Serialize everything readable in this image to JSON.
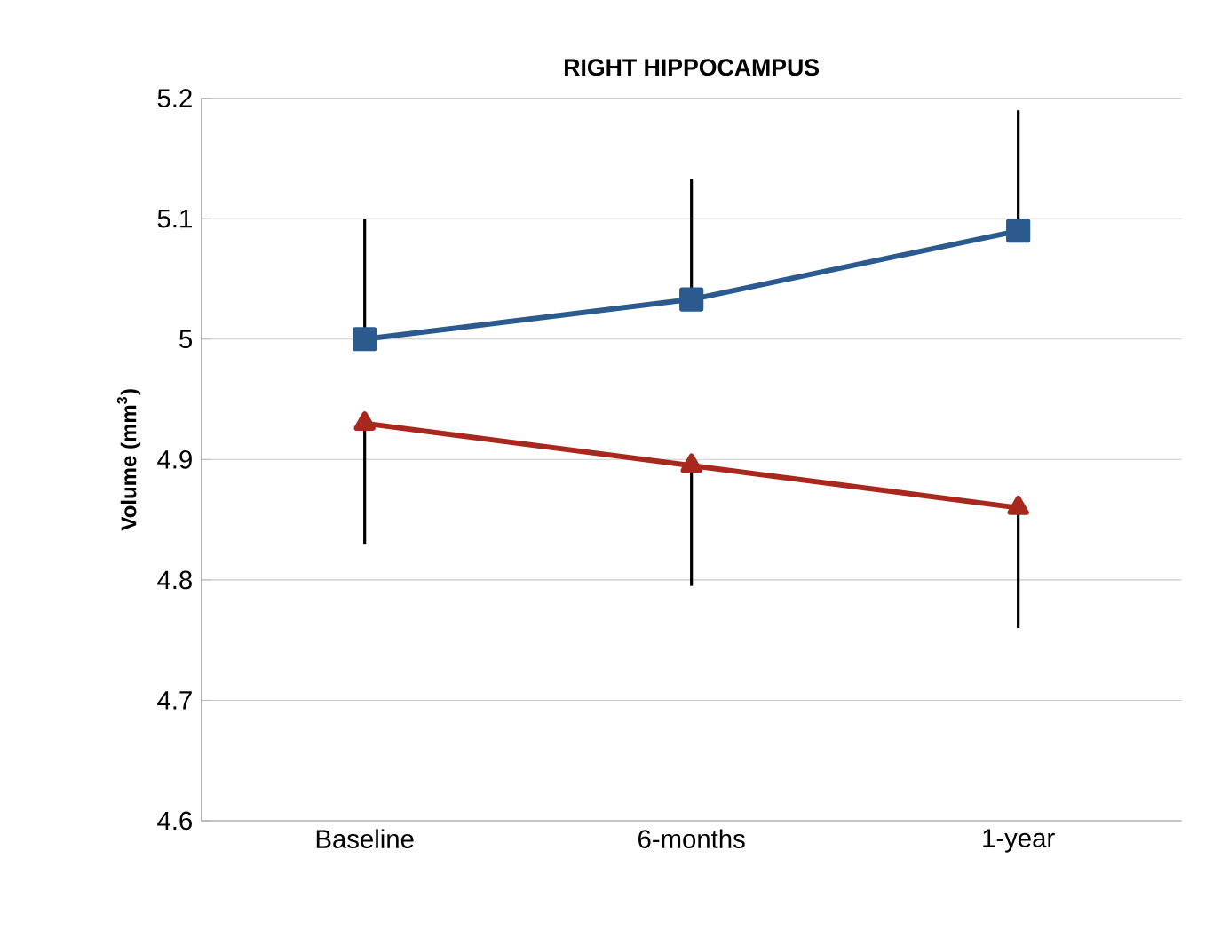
{
  "chart_data": {
    "type": "line",
    "title": "RIGHT HIPPOCAMPUS",
    "ylabel": "Volume (mm$^{3}$)",
    "categories": [
      "Baseline",
      "6-months",
      "1-year"
    ],
    "series": [
      {
        "color": "#2b5a8e",
        "marker": "square",
        "values": [
          5.0,
          5.033,
          5.09
        ],
        "errors": [
          [
            5.0,
            5.1
          ],
          [
            5.033,
            5.133
          ],
          [
            5.09,
            5.19
          ]
        ]
      },
      {
        "color": "#a8281e",
        "marker": "triangle",
        "values": [
          4.93,
          4.895,
          4.86
        ],
        "errors": [
          [
            4.83,
            4.93
          ],
          [
            4.795,
            4.895
          ],
          [
            4.76,
            4.86
          ]
        ]
      }
    ],
    "ylim": [
      4.6,
      5.2
    ],
    "yticks": [
      4.6,
      4.7,
      4.8,
      4.9,
      5,
      5.1,
      5.2
    ],
    "grid": "y"
  }
}
